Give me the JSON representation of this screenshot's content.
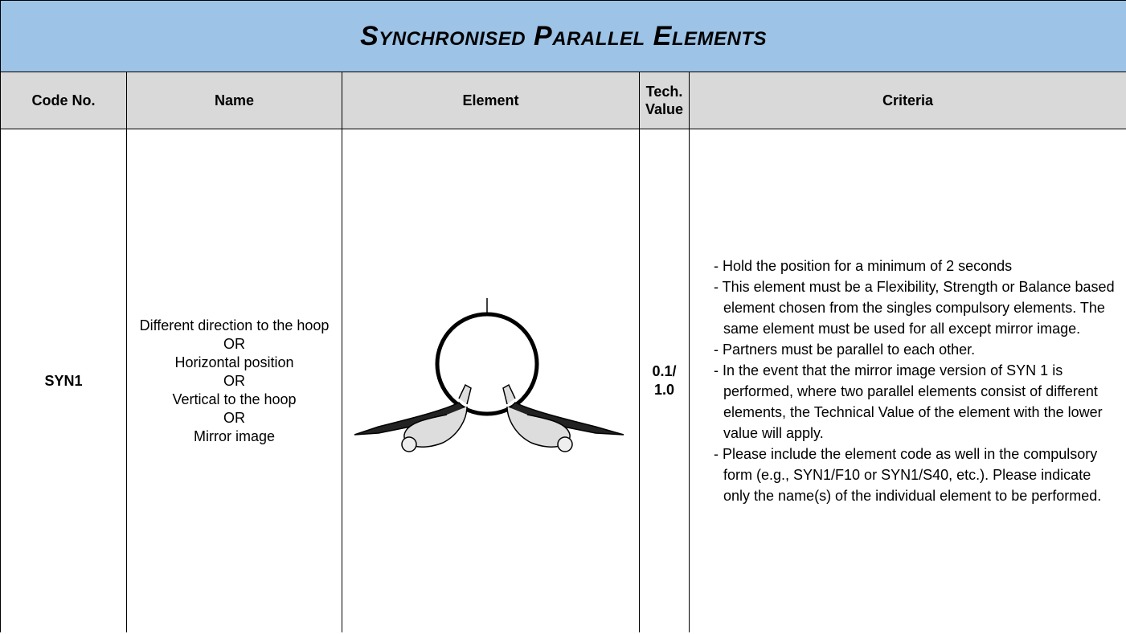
{
  "table": {
    "title": "Synchronised Parallel Elements",
    "headers": [
      "Code No.",
      "Name",
      "Element",
      "Tech. Value",
      "Criteria"
    ],
    "rows": [
      {
        "code": "SYN1",
        "name": [
          "Different direction to the hoop",
          "OR",
          "Horizontal position",
          "OR",
          "Vertical to the hoop",
          "OR",
          "Mirror image"
        ],
        "tech_value": "0.1/ 1.0",
        "criteria": [
          "- Hold the position for a minimum of 2 seconds",
          "- This element must be a Flexibility, Strength or Balance based element chosen from the singles compulsory elements. The same element must be used for all except mirror image.",
          "- Partners must be parallel to each other.",
          "- In the event that the mirror image version of SYN 1 is performed, where two parallel elements consist of different elements, the Technical Value of the element with the lower value will apply.",
          "- Please include the element code as well in the compulsory form (e.g., SYN1/F10 or SYN1/S40, etc.). Please indicate only the name(s) of the individual element to be performed."
        ]
      }
    ]
  }
}
